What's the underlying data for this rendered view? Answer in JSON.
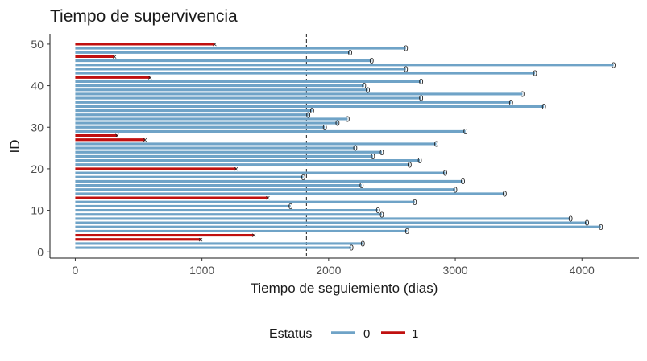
{
  "chart_data": {
    "type": "bar",
    "orientation": "horizontal",
    "title": "Tiempo de supervivencia",
    "xlabel": "Tiempo de seguiemiento (dias)",
    "ylabel": "ID",
    "xlim": [
      -200,
      4450
    ],
    "ylim": [
      -1.5,
      52.5
    ],
    "x_ticks": [
      0,
      1000,
      2000,
      3000,
      4000
    ],
    "y_ticks": [
      0,
      10,
      20,
      30,
      40,
      50
    ],
    "reference_line_x": 1825,
    "grid": false,
    "legend": {
      "title": "Estatus",
      "position": "bottom",
      "entries": [
        {
          "label": "0",
          "color": "#6fa3c7"
        },
        {
          "label": "1",
          "color": "#c0100f"
        }
      ]
    },
    "marker_symbols": {
      "0": "0",
      "1": "×"
    },
    "status_colors": {
      "0": "#6fa3c7",
      "1": "#c0100f"
    },
    "ids": [
      1,
      2,
      3,
      4,
      5,
      6,
      7,
      8,
      9,
      10,
      11,
      12,
      13,
      14,
      15,
      16,
      17,
      18,
      19,
      20,
      21,
      22,
      23,
      24,
      25,
      26,
      27,
      28,
      29,
      30,
      31,
      32,
      33,
      34,
      35,
      36,
      37,
      38,
      39,
      40,
      41,
      42,
      43,
      44,
      45,
      46,
      47,
      48,
      49,
      50
    ],
    "times": [
      2180,
      2270,
      990,
      1410,
      2620,
      4150,
      4040,
      3910,
      2420,
      2390,
      1700,
      2680,
      1520,
      3390,
      3000,
      2260,
      3060,
      1800,
      2920,
      1270,
      2640,
      2720,
      2350,
      2420,
      2210,
      2850,
      550,
      330,
      3080,
      1970,
      2070,
      2150,
      1840,
      1870,
      3700,
      3440,
      2730,
      3530,
      2310,
      2280,
      2730,
      590,
      3630,
      2610,
      4250,
      2340,
      310,
      2170,
      2610,
      1100
    ],
    "status": [
      0,
      0,
      1,
      1,
      0,
      0,
      0,
      0,
      0,
      0,
      0,
      0,
      1,
      0,
      0,
      0,
      0,
      0,
      0,
      1,
      0,
      0,
      0,
      0,
      0,
      0,
      1,
      1,
      0,
      0,
      0,
      0,
      0,
      0,
      0,
      0,
      0,
      0,
      0,
      0,
      0,
      1,
      0,
      0,
      0,
      0,
      1,
      0,
      0,
      1
    ]
  }
}
